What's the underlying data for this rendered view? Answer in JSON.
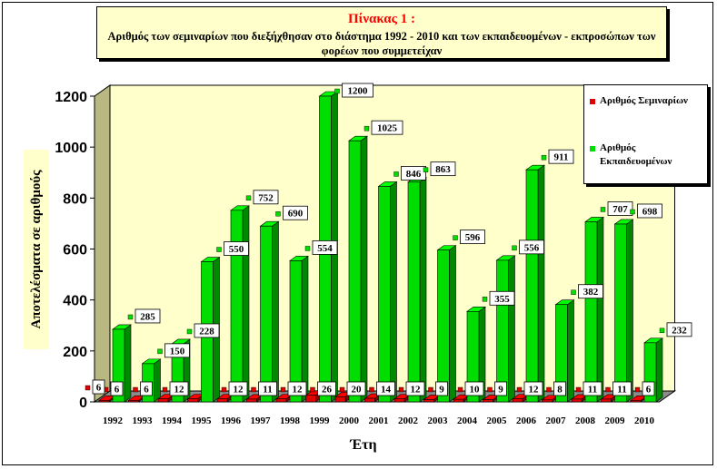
{
  "chart_data": {
    "type": "bar",
    "title": "Πίνακας 1 :",
    "subtitle": "Αριθμός των σεμιναρίων που διεξήχθησαν στο διάστημα 1992 - 2010 και των εκπαιδευομένων - εκπροσώπων των φορέων που συμμετείχαν",
    "xlabel": "Έτη",
    "ylabel": "Αποτελέσματα σε αριθμούς",
    "ylim": [
      0,
      1200
    ],
    "yticks": [
      "0",
      "200",
      "400",
      "600",
      "800",
      "1000",
      "1200"
    ],
    "categories": [
      "1992",
      "1993",
      "1994",
      "1995",
      "1996",
      "1997",
      "1998",
      "1999",
      "2000",
      "2001",
      "2002",
      "2003",
      "2004",
      "2005",
      "2006",
      "2007",
      "2008",
      "2009",
      "2010"
    ],
    "series": [
      {
        "name": "Αριθμός Σεμιναρίων",
        "color": "#e00000",
        "values": [
          6,
          6,
          12,
          12,
          12,
          11,
          12,
          26,
          20,
          14,
          12,
          9,
          10,
          9,
          12,
          8,
          11,
          11,
          6
        ],
        "labels": [
          "6",
          "6",
          "12",
          "",
          "12",
          "11",
          "12",
          "26",
          "20",
          "14",
          "12",
          "9",
          "10",
          "9",
          "12",
          "8",
          "11",
          "11",
          "6"
        ]
      },
      {
        "name": "Αριθμός Εκπαιδευομένων",
        "color": "#00dd00",
        "values": [
          285,
          150,
          228,
          550,
          752,
          690,
          554,
          1200,
          1025,
          846,
          863,
          596,
          355,
          556,
          911,
          382,
          707,
          698,
          232
        ],
        "labels": [
          "285",
          "150",
          "228",
          "550",
          "752",
          "690",
          "554",
          "1200",
          "1025",
          "846",
          "863",
          "596",
          "355",
          "556",
          "911",
          "382",
          "707",
          "698",
          "232"
        ]
      }
    ],
    "extra_labels": [
      "6"
    ],
    "legend_position": "right",
    "grid": false,
    "style": "3d-bar"
  }
}
